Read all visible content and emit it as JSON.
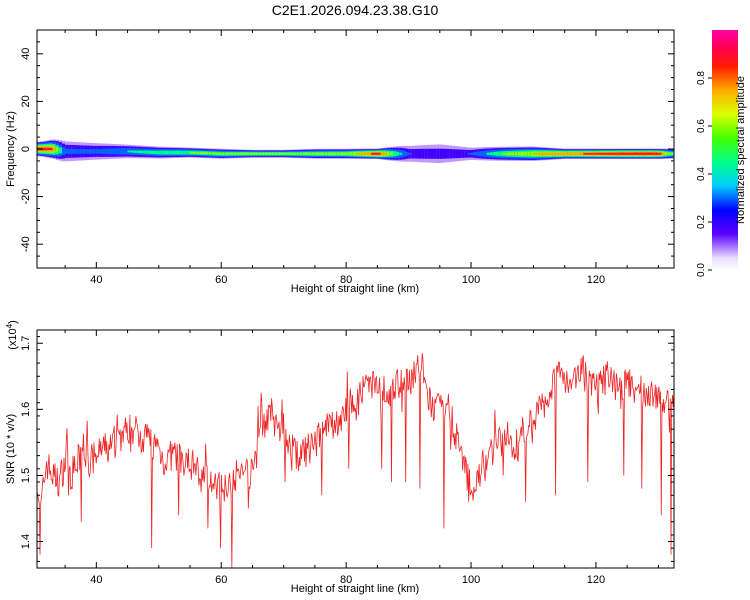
{
  "title": "C2E1.2026.094.23.38.G10",
  "chart_data": [
    {
      "type": "heatmap",
      "xlabel": "Height of straight line (km)",
      "ylabel": "Frequency (Hz)",
      "xlim": [
        30.5,
        132.5
      ],
      "ylim": [
        -50,
        50
      ],
      "xticks": [
        40,
        60,
        80,
        100,
        120
      ],
      "yticks": [
        -40,
        -20,
        0,
        20,
        40
      ],
      "colorbar": {
        "label": "Normalized spectral amplitude",
        "range": [
          0,
          1
        ],
        "ticks": [
          "0.0",
          "0.2",
          "0.4",
          "0.6",
          "0.8"
        ]
      },
      "ridge": {
        "x": [
          31,
          33,
          35,
          40,
          45,
          50,
          55,
          60,
          65,
          70,
          75,
          80,
          85,
          90,
          95,
          100,
          105,
          110,
          115,
          120,
          125,
          130,
          132
        ],
        "y": [
          0,
          0,
          -1,
          -1,
          -1,
          -1.5,
          -1.5,
          -2,
          -2,
          -2,
          -2,
          -2,
          -2,
          -2,
          -2,
          -2,
          -2,
          -2,
          -2,
          -2,
          -2,
          -2,
          -2
        ],
        "amplitude": [
          0.95,
          0.9,
          0.35,
          0.35,
          0.45,
          0.55,
          0.6,
          0.6,
          0.62,
          0.6,
          0.62,
          0.65,
          0.95,
          0.3,
          0.28,
          0.3,
          0.6,
          0.75,
          0.85,
          0.9,
          0.95,
          0.95,
          0.6
        ],
        "halo_width_hz": [
          3,
          4,
          5,
          4,
          3,
          2.5,
          2,
          2,
          1.5,
          1.5,
          2,
          2,
          2,
          4,
          5,
          3,
          3,
          3,
          2,
          2,
          2,
          2,
          2
        ]
      }
    },
    {
      "type": "line",
      "xlabel": "Height of straight line (km)",
      "ylabel": "SNR (10 * v/v)",
      "yscale_note": "(x10",
      "yscale_exp": "4",
      "yscale_close": ")",
      "xlim": [
        30.5,
        132.5
      ],
      "ylim": [
        1.36,
        1.72
      ],
      "xticks": [
        40,
        60,
        80,
        100,
        120
      ],
      "yticks": [
        "1.4",
        "1.5",
        "1.6",
        "1.7"
      ],
      "color": "#ee2222",
      "series": [
        {
          "x": [
            30.5,
            31,
            32,
            33,
            34,
            35,
            36,
            37,
            38,
            39,
            40,
            41,
            42,
            43,
            44,
            45,
            46,
            47,
            48,
            49,
            50,
            51,
            52,
            53,
            54,
            55,
            56,
            57,
            58,
            59,
            60,
            61,
            62,
            63,
            64,
            65,
            66,
            67,
            68,
            69,
            70,
            71,
            72,
            73,
            74,
            75,
            76,
            77,
            78,
            79,
            80,
            81,
            82,
            83,
            84,
            85,
            86,
            87,
            88,
            89,
            90,
            91,
            92,
            93,
            94,
            95,
            96,
            97,
            98,
            99,
            100,
            101,
            102,
            103,
            104,
            105,
            106,
            107,
            108,
            109,
            110,
            111,
            112,
            113,
            114,
            115,
            116,
            117,
            118,
            119,
            120,
            121,
            122,
            123,
            124,
            125,
            126,
            127,
            128,
            129,
            130,
            131,
            132,
            132.5
          ],
          "y": [
            1.5,
            1.44,
            1.52,
            1.5,
            1.49,
            1.52,
            1.5,
            1.52,
            1.54,
            1.52,
            1.53,
            1.54,
            1.54,
            1.55,
            1.56,
            1.57,
            1.57,
            1.56,
            1.56,
            1.55,
            1.54,
            1.52,
            1.53,
            1.53,
            1.51,
            1.52,
            1.51,
            1.49,
            1.5,
            1.48,
            1.48,
            1.49,
            1.5,
            1.5,
            1.51,
            1.5,
            1.56,
            1.58,
            1.59,
            1.57,
            1.57,
            1.55,
            1.53,
            1.53,
            1.54,
            1.55,
            1.56,
            1.57,
            1.58,
            1.58,
            1.6,
            1.61,
            1.62,
            1.63,
            1.63,
            1.64,
            1.63,
            1.62,
            1.64,
            1.63,
            1.64,
            1.66,
            1.67,
            1.62,
            1.6,
            1.6,
            1.61,
            1.58,
            1.55,
            1.51,
            1.48,
            1.49,
            1.51,
            1.53,
            1.55,
            1.55,
            1.56,
            1.54,
            1.56,
            1.58,
            1.58,
            1.6,
            1.61,
            1.64,
            1.66,
            1.65,
            1.64,
            1.66,
            1.65,
            1.64,
            1.63,
            1.64,
            1.65,
            1.64,
            1.63,
            1.64,
            1.63,
            1.63,
            1.62,
            1.63,
            1.62,
            1.61,
            1.6,
            1.61
          ],
          "spikes": [
            {
              "x": 31.0,
              "y": 1.38
            },
            {
              "x": 35.5,
              "y": 1.47
            },
            {
              "x": 37.6,
              "y": 1.43
            },
            {
              "x": 48.8,
              "y": 1.39
            },
            {
              "x": 53.2,
              "y": 1.44
            },
            {
              "x": 57.8,
              "y": 1.42
            },
            {
              "x": 59.9,
              "y": 1.39
            },
            {
              "x": 61.7,
              "y": 1.36
            },
            {
              "x": 64.3,
              "y": 1.45
            },
            {
              "x": 70.2,
              "y": 1.49
            },
            {
              "x": 76.1,
              "y": 1.47
            },
            {
              "x": 80.4,
              "y": 1.51
            },
            {
              "x": 85.7,
              "y": 1.51
            },
            {
              "x": 87.3,
              "y": 1.49
            },
            {
              "x": 89.5,
              "y": 1.49
            },
            {
              "x": 91.8,
              "y": 1.48
            },
            {
              "x": 95.7,
              "y": 1.42
            },
            {
              "x": 99.6,
              "y": 1.46
            },
            {
              "x": 105.2,
              "y": 1.5
            },
            {
              "x": 108.7,
              "y": 1.46
            },
            {
              "x": 113.5,
              "y": 1.47
            },
            {
              "x": 118.7,
              "y": 1.49
            },
            {
              "x": 124.5,
              "y": 1.5
            },
            {
              "x": 127.3,
              "y": 1.48
            },
            {
              "x": 130.5,
              "y": 1.44
            },
            {
              "x": 132.0,
              "y": 1.38
            }
          ]
        }
      ]
    }
  ]
}
